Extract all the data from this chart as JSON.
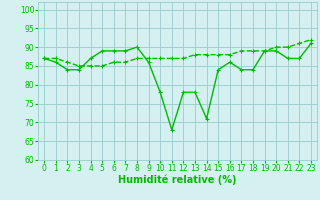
{
  "line1_x": [
    0,
    1,
    2,
    3,
    4,
    5,
    6,
    7,
    8,
    9,
    10,
    11,
    12,
    13,
    14,
    15,
    16,
    17,
    18,
    19,
    20,
    21,
    22,
    23
  ],
  "line1_y": [
    87,
    86,
    84,
    84,
    87,
    89,
    89,
    89,
    90,
    86,
    78,
    68,
    78,
    78,
    71,
    84,
    86,
    84,
    84,
    89,
    89,
    87,
    87,
    91
  ],
  "line2_x": [
    0,
    1,
    2,
    3,
    4,
    5,
    6,
    7,
    8,
    9,
    10,
    11,
    12,
    13,
    14,
    15,
    16,
    17,
    18,
    19,
    20,
    21,
    22,
    23
  ],
  "line2_y": [
    87,
    87,
    86,
    85,
    85,
    85,
    86,
    86,
    87,
    87,
    87,
    87,
    87,
    88,
    88,
    88,
    88,
    89,
    89,
    89,
    90,
    90,
    91,
    92
  ],
  "line_color": "#00bb00",
  "bg_color": "#d4f0f0",
  "grid_color": "#99cccc",
  "xlabel": "Humidité relative (%)",
  "xlim": [
    -0.5,
    23.5
  ],
  "ylim": [
    60,
    102
  ],
  "yticks": [
    60,
    65,
    70,
    75,
    80,
    85,
    90,
    95,
    100
  ],
  "xticks": [
    0,
    1,
    2,
    3,
    4,
    5,
    6,
    7,
    8,
    9,
    10,
    11,
    12,
    13,
    14,
    15,
    16,
    17,
    18,
    19,
    20,
    21,
    22,
    23
  ],
  "tick_label_fontsize": 5.5,
  "xlabel_fontsize": 7
}
